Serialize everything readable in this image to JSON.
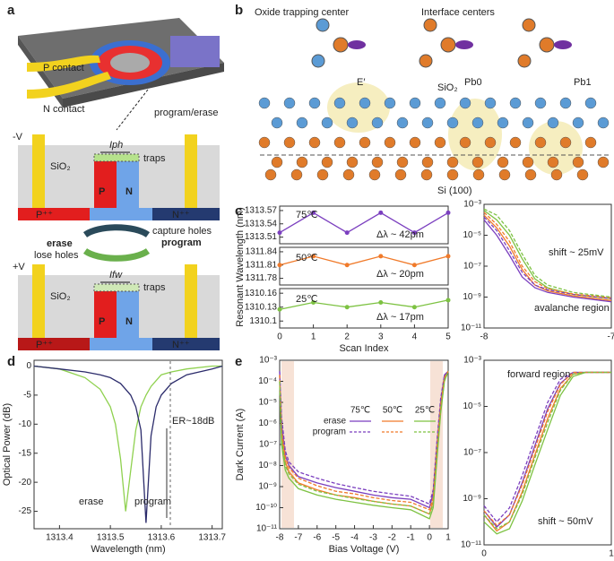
{
  "figure": {
    "panel_a": "a",
    "panel_b": "b",
    "panel_c": "c",
    "panel_d": "d",
    "panel_e": "e",
    "p_contact": "P contact",
    "n_contact": "N contact",
    "program_erase": "program/erase",
    "top_section": {
      "voltage": "-V",
      "oxide": "SiO₂",
      "current": "Iph",
      "traps": "traps",
      "p": "P",
      "n": "N",
      "ppp": "P⁺⁺",
      "npp": "N⁺⁺"
    },
    "cycle": {
      "capture": "capture holes",
      "program": "program",
      "erase": "erase",
      "lose": "lose holes"
    },
    "bottom_section": {
      "voltage": "+V",
      "oxide": "SiO₂",
      "current": "Ifw",
      "traps": "traps",
      "p": "P",
      "n": "N",
      "ppp": "P⁺⁺",
      "npp": "N⁺⁺"
    },
    "oxide_center": "Oxide trapping center",
    "interface_centers": "Interface centers",
    "e_prime": "E′",
    "pb0": "Pb0",
    "pb1": "Pb1",
    "sio2": "SiO₂",
    "si100": "Si (100)"
  },
  "chart_data": [
    {
      "type": "line",
      "label": "75℃",
      "annotation": "Δλ ~ 42pm",
      "x": [
        0,
        1,
        2,
        3,
        4,
        5
      ],
      "xlim": [
        0,
        5
      ],
      "ylim": [
        1313.495,
        1313.58
      ],
      "yticks": [
        1313.51,
        1313.54,
        1313.57
      ],
      "series": [
        {
          "color": "#7b3fbf",
          "values": [
            1313.52,
            1313.565,
            1313.52,
            1313.565,
            1313.52,
            1313.565
          ]
        }
      ]
    },
    {
      "type": "line",
      "label": "50℃",
      "annotation": "Δλ ~ 20pm",
      "ylabel": "Resonant Wavelength (nm)",
      "x": [
        0,
        1,
        2,
        3,
        4,
        5
      ],
      "xlim": [
        0,
        5
      ],
      "ylim": [
        1311.765,
        1311.85
      ],
      "yticks": [
        1311.78,
        1311.81,
        1311.84
      ],
      "series": [
        {
          "color": "#f07a2a",
          "values": [
            1311.81,
            1311.83,
            1311.81,
            1311.83,
            1311.81,
            1311.83
          ]
        }
      ]
    },
    {
      "type": "line",
      "label": "25℃",
      "annotation": "Δλ ~ 17pm",
      "xlabel": "Scan Index",
      "x": [
        0,
        1,
        2,
        3,
        4,
        5
      ],
      "xlim": [
        0,
        5
      ],
      "xticks": [
        0,
        1,
        2,
        3,
        4,
        5
      ],
      "ylim": [
        1310.085,
        1310.17
      ],
      "yticks": [
        1310.1,
        1310.13,
        1310.16
      ],
      "series": [
        {
          "color": "#7dc242",
          "values": [
            1310.125,
            1310.14,
            1310.13,
            1310.14,
            1310.13,
            1310.145
          ]
        }
      ]
    },
    {
      "type": "line",
      "log": true,
      "annotations": [
        "shift ~ 25mV",
        "avalanche region"
      ],
      "x": [
        -8,
        -7.9,
        -7.8,
        -7.7,
        -7.6,
        -7.5,
        -7.3,
        -7
      ],
      "xlim": [
        -8,
        -7
      ],
      "xticks": [
        -8,
        -7
      ],
      "ylim": [
        1e-11,
        0.001
      ],
      "yticks": [
        {
          "value": 0.001,
          "label": "10⁻³"
        },
        {
          "value": 1e-05,
          "label": "10⁻⁵"
        },
        {
          "value": 1e-07,
          "label": "10⁻⁷"
        },
        {
          "value": 1e-09,
          "label": "10⁻⁹"
        },
        {
          "value": 1e-11,
          "label": "10⁻¹¹"
        }
      ],
      "series": [
        {
          "color": "#7b3fbf",
          "values": [
            0.0001,
            1e-05,
            5e-07,
            2e-08,
            4e-09,
            2e-09,
            1e-09,
            5e-10
          ]
        },
        {
          "color": "#f07a2a",
          "values": [
            0.0002,
            3e-05,
            2e-06,
            6e-08,
            6e-09,
            2.5e-09,
            1.2e-09,
            6e-10
          ]
        },
        {
          "color": "#7dc242",
          "values": [
            0.0004,
            0.0001,
            1e-05,
            3e-07,
            1.5e-08,
            4e-09,
            1.5e-09,
            8e-10
          ]
        },
        {
          "color": "#7b3fbf",
          "dashed": true,
          "values": [
            0.00015,
            2e-05,
            1e-06,
            4e-08,
            6e-09,
            3e-09,
            1.5e-09,
            8e-10
          ]
        },
        {
          "color": "#f07a2a",
          "dashed": true,
          "values": [
            0.0003,
            5e-05,
            4e-06,
            1e-07,
            1e-08,
            3.5e-09,
            1.6e-09,
            9e-10
          ]
        },
        {
          "color": "#7dc242",
          "dashed": true,
          "values": [
            0.0005,
            0.0002,
            2e-05,
            6e-07,
            2.5e-08,
            6e-09,
            2e-09,
            1e-09
          ]
        }
      ]
    },
    {
      "type": "line",
      "xlabel": "Wavelength (nm)",
      "ylabel": "Optical Power (dB)",
      "annotations": [
        "ER~18dB",
        "erase",
        "program"
      ],
      "x": [
        1313.35,
        1313.4,
        1313.45,
        1313.48,
        1313.5,
        1313.51,
        1313.52,
        1313.53,
        1313.54,
        1313.55,
        1313.56,
        1313.57,
        1313.58,
        1313.59,
        1313.6,
        1313.62,
        1313.65,
        1313.7,
        1313.72
      ],
      "xlim": [
        1313.35,
        1313.72
      ],
      "xticks": [
        1313.4,
        1313.5,
        1313.6,
        1313.7
      ],
      "ylim": [
        -28,
        1
      ],
      "yticks": [
        0,
        -5,
        -10,
        -15,
        -20,
        -25
      ],
      "series": [
        {
          "color": "#8fd14f",
          "values": [
            0,
            -0.5,
            -2,
            -4,
            -7,
            -10,
            -16,
            -25,
            -18,
            -11,
            -7,
            -5,
            -3.5,
            -2.5,
            -1.5,
            -1,
            -0.5,
            0,
            0
          ]
        },
        {
          "color": "#2b2b6b",
          "values": [
            0,
            -0.5,
            -1,
            -1.5,
            -2,
            -2.5,
            -3,
            -4,
            -5,
            -7,
            -11,
            -27,
            -12,
            -7,
            -5,
            -3,
            -1.5,
            -0.5,
            0
          ]
        }
      ]
    },
    {
      "type": "line",
      "log": true,
      "xlabel": "Bias Voltage (V)",
      "ylabel": "Dark Current (A)",
      "legend": {
        "columns": [
          "75℃",
          "50℃",
          "25℃"
        ],
        "rows": [
          "erase",
          "program"
        ]
      },
      "x": [
        -8,
        -7.9,
        -7.7,
        -7.5,
        -7,
        -6,
        -5,
        -4,
        -3,
        -2,
        -1,
        0,
        0.2,
        0.4,
        0.6,
        0.8,
        1
      ],
      "xlim": [
        -8,
        1
      ],
      "xticks": [
        -8,
        -7,
        -6,
        -5,
        -4,
        -3,
        -2,
        -1,
        0,
        1
      ],
      "ylim": [
        1e-11,
        0.001
      ],
      "yticks": [
        {
          "value": 0.001,
          "label": "10⁻³"
        },
        {
          "value": 0.0001,
          "label": "10⁻⁴"
        },
        {
          "value": 1e-05,
          "label": "10⁻⁵"
        },
        {
          "value": 1e-06,
          "label": "10⁻⁶"
        },
        {
          "value": 1e-07,
          "label": "10⁻⁷"
        },
        {
          "value": 1e-08,
          "label": "10⁻⁸"
        },
        {
          "value": 1e-09,
          "label": "10⁻⁹"
        },
        {
          "value": 1e-10,
          "label": "10⁻¹⁰"
        },
        {
          "value": 1e-11,
          "label": "10⁻¹¹"
        }
      ],
      "series": [
        {
          "color": "#7b3fbf",
          "values": [
            0.0003,
            1e-06,
            3e-08,
            1e-08,
            3e-09,
            1.5e-09,
            9e-10,
            6e-10,
            4e-10,
            3e-10,
            2.5e-10,
            1e-10,
            5e-10,
            1e-07,
            1e-05,
            0.0002,
            0.0003
          ]
        },
        {
          "color": "#f07a2a",
          "values": [
            0.0002,
            3e-07,
            1.5e-08,
            5e-09,
            1.5e-09,
            7e-10,
            4e-10,
            3e-10,
            2e-10,
            1.5e-10,
            1.2e-10,
            5e-11,
            2e-10,
            5e-08,
            5e-06,
            0.00015,
            0.0003
          ]
        },
        {
          "color": "#7dc242",
          "values": [
            0.0001,
            1e-07,
            6e-09,
            2.5e-09,
            8e-10,
            4e-10,
            2.5e-10,
            1.8e-10,
            1.3e-10,
            1e-10,
            8e-11,
            3e-11,
            1e-10,
            2e-08,
            3e-06,
            0.0001,
            0.0003
          ]
        },
        {
          "color": "#7b3fbf",
          "dashed": true,
          "values": [
            0.0003,
            2e-06,
            5e-08,
            1.5e-08,
            5e-09,
            2.5e-09,
            1.4e-09,
            9e-10,
            6e-10,
            4.5e-10,
            3.5e-10,
            1.5e-10,
            7e-10,
            1.5e-07,
            1.5e-05,
            0.0002,
            0.0003
          ]
        },
        {
          "color": "#f07a2a",
          "dashed": true,
          "values": [
            0.0002,
            5e-07,
            2.5e-08,
            8e-09,
            2.5e-09,
            1.1e-09,
            6e-10,
            4.5e-10,
            3e-10,
            2.2e-10,
            1.8e-10,
            8e-11,
            3e-10,
            7e-08,
            7e-06,
            0.00015,
            0.0003
          ]
        },
        {
          "color": "#7dc242",
          "dashed": true,
          "values": [
            0.0001,
            2e-07,
            1e-08,
            4e-09,
            1.3e-09,
            6e-10,
            4e-10,
            2.7e-10,
            2e-10,
            1.5e-10,
            1.2e-10,
            5e-11,
            1.5e-10,
            3e-08,
            4e-06,
            0.0001,
            0.0003
          ]
        }
      ]
    },
    {
      "type": "line",
      "log": true,
      "annotations": [
        "forward region",
        "shift ~ 50mV"
      ],
      "x": [
        0,
        0.1,
        0.2,
        0.3,
        0.4,
        0.5,
        0.6,
        0.7,
        0.8,
        0.9,
        1
      ],
      "xlim": [
        0,
        1
      ],
      "xticks": [
        0,
        1
      ],
      "ylim": [
        1e-11,
        0.001
      ],
      "yticks": [
        {
          "value": 0.001,
          "label": "10⁻³"
        },
        {
          "value": 1e-05,
          "label": "10⁻⁵"
        },
        {
          "value": 1e-07,
          "label": "10⁻⁷"
        },
        {
          "value": 1e-09,
          "label": "10⁻⁹"
        },
        {
          "value": 1e-11,
          "label": "10⁻¹¹"
        }
      ],
      "series": [
        {
          "color": "#7b3fbf",
          "values": [
            3e-10,
            6e-11,
            2e-10,
            5e-09,
            2e-07,
            8e-06,
            0.0001,
            0.0003,
            0.0003,
            0.0003,
            0.0003
          ]
        },
        {
          "color": "#f07a2a",
          "values": [
            2e-10,
            4e-11,
            1e-10,
            2e-09,
            8e-08,
            3e-06,
            6e-05,
            0.00025,
            0.0003,
            0.0003,
            0.0003
          ]
        },
        {
          "color": "#7dc242",
          "values": [
            1e-10,
            3e-11,
            5e-11,
            8e-10,
            3e-08,
            1e-06,
            3e-05,
            0.0002,
            0.0003,
            0.0003,
            0.0003
          ]
        },
        {
          "color": "#7b3fbf",
          "dashed": true,
          "values": [
            5e-10,
            1e-10,
            4e-10,
            1e-08,
            4e-07,
            1.5e-05,
            0.00015,
            0.0003,
            0.0003,
            0.0003,
            0.0003
          ]
        },
        {
          "color": "#f07a2a",
          "dashed": true,
          "values": [
            3e-10,
            7e-11,
            2e-10,
            4e-09,
            1.5e-07,
            6e-06,
            9e-05,
            0.0003,
            0.0003,
            0.0003,
            0.0003
          ]
        },
        {
          "color": "#7dc242",
          "dashed": true,
          "values": [
            2e-10,
            5e-11,
            1e-10,
            1.5e-09,
            6e-08,
            2e-06,
            5e-05,
            0.00025,
            0.0003,
            0.0003,
            0.0003
          ]
        }
      ]
    }
  ]
}
